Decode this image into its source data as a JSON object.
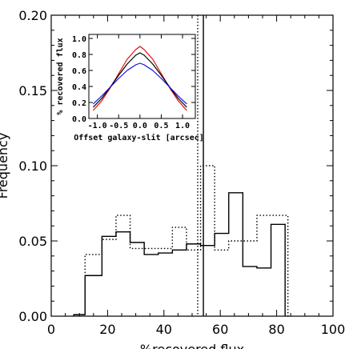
{
  "chart_data": [
    {
      "type": "histogram",
      "xlabel": "%recovered flux",
      "ylabel": "Frequency",
      "xlim": [
        0,
        100
      ],
      "ylim": [
        0,
        0.2
      ],
      "xticks": [
        0,
        20,
        40,
        60,
        80,
        100
      ],
      "xtick_labels": [
        "0",
        "20",
        "40",
        "60",
        "80",
        "100"
      ],
      "yticks": [
        0.0,
        0.05,
        0.1,
        0.15,
        0.2
      ],
      "ytick_labels": [
        "0.00",
        "0.05",
        "0.10",
        "0.15",
        "0.20"
      ],
      "series": [
        {
          "style": "solid",
          "color": "#000000",
          "bin_edges": [
            8,
            12,
            18,
            23,
            28,
            33,
            38,
            43,
            48,
            53,
            58,
            63,
            68,
            73,
            78,
            83
          ],
          "values": [
            0.001,
            0.027,
            0.053,
            0.056,
            0.049,
            0.041,
            0.042,
            0.044,
            0.048,
            0.047,
            0.055,
            0.082,
            0.033,
            0.032,
            0.061
          ]
        },
        {
          "style": "dotted",
          "color": "#000000",
          "bin_edges": [
            8,
            12,
            18,
            23,
            28,
            33,
            38,
            43,
            48,
            53,
            58,
            63,
            68,
            73,
            78,
            84
          ],
          "values": [
            0.001,
            0.041,
            0.051,
            0.067,
            0.045,
            0.045,
            0.045,
            0.059,
            0.044,
            0.1,
            0.044,
            0.05,
            0.05,
            0.067,
            0.067
          ]
        }
      ],
      "vlines": [
        {
          "x": 54,
          "style": "solid",
          "color": "#000000"
        },
        {
          "x": 52,
          "style": "dotted",
          "color": "#000000"
        }
      ]
    },
    {
      "type": "line",
      "xlabel": "Offset galaxy-slit [arcsec]",
      "ylabel": "% recovered flux",
      "xlim": [
        -1.2,
        1.3
      ],
      "ylim": [
        0,
        1.05
      ],
      "xticks": [
        -1.0,
        -0.5,
        0.0,
        0.5,
        1.0
      ],
      "xtick_labels": [
        "-1.0",
        "-0.5",
        "0.0",
        "0.5",
        "1.0"
      ],
      "yticks": [
        0.0,
        0.2,
        0.4,
        0.6,
        0.8,
        1.0
      ],
      "ytick_labels": [
        "0.0",
        "0.2",
        "0.4",
        "0.6",
        "0.8",
        "1.0"
      ],
      "series": [
        {
          "color": "#e01010",
          "x": [
            -1.1,
            -0.9,
            -0.7,
            -0.5,
            -0.3,
            -0.1,
            0.0,
            0.1,
            0.3,
            0.5,
            0.7,
            0.9,
            1.1
          ],
          "values": [
            0.1,
            0.22,
            0.38,
            0.56,
            0.74,
            0.86,
            0.9,
            0.86,
            0.74,
            0.56,
            0.38,
            0.22,
            0.1
          ]
        },
        {
          "color": "#000000",
          "x": [
            -1.1,
            -0.9,
            -0.7,
            -0.5,
            -0.3,
            -0.1,
            0.0,
            0.1,
            0.3,
            0.5,
            0.7,
            0.9,
            1.1
          ],
          "values": [
            0.14,
            0.25,
            0.39,
            0.54,
            0.68,
            0.79,
            0.82,
            0.79,
            0.68,
            0.54,
            0.39,
            0.25,
            0.14
          ]
        },
        {
          "color": "#1010e0",
          "x": [
            -1.1,
            -0.9,
            -0.7,
            -0.5,
            -0.3,
            -0.1,
            0.0,
            0.1,
            0.3,
            0.5,
            0.7,
            0.9,
            1.1
          ],
          "values": [
            0.18,
            0.28,
            0.39,
            0.5,
            0.6,
            0.67,
            0.69,
            0.67,
            0.6,
            0.5,
            0.39,
            0.28,
            0.18
          ]
        }
      ]
    }
  ]
}
